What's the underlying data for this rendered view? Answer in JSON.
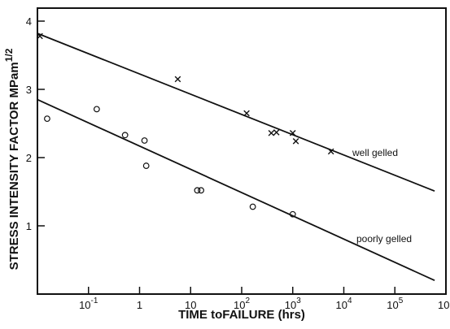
{
  "chart_data": {
    "type": "scatter",
    "xscale": "log",
    "xlim": [
      0.01,
      1000000
    ],
    "ylim": [
      0,
      4
    ],
    "grid": false,
    "xlabel": "TIME toFAILURE (hrs)",
    "ylabel": "STRESS INTENSITY FACTOR MPam",
    "ylabel_sup": "1/2",
    "yticks": [
      {
        "value": 1,
        "label": "1"
      },
      {
        "value": 2,
        "label": "2"
      },
      {
        "value": 3,
        "label": "3"
      },
      {
        "value": 4,
        "label": "4"
      }
    ],
    "xticks": [
      {
        "value": 0.1,
        "base": "10",
        "exp": "-1"
      },
      {
        "value": 1,
        "base": "1",
        "exp": ""
      },
      {
        "value": 10,
        "base": "10",
        "exp": ""
      },
      {
        "value": 100,
        "base": "10",
        "exp": "2"
      },
      {
        "value": 1000,
        "base": "10",
        "exp": "3"
      },
      {
        "value": 10000,
        "base": "10",
        "exp": "4"
      },
      {
        "value": 100000,
        "base": "10",
        "exp": "5"
      },
      {
        "value": 1000000,
        "base": "10",
        "exp": "6"
      }
    ],
    "series": [
      {
        "name": "well gelled",
        "marker": "x",
        "points": [
          {
            "x": 0.01,
            "y": 3.78
          },
          {
            "x": 5.6,
            "y": 3.15
          },
          {
            "x": 125,
            "y": 2.65
          },
          {
            "x": 380,
            "y": 2.36
          },
          {
            "x": 480,
            "y": 2.37
          },
          {
            "x": 1000,
            "y": 2.36
          },
          {
            "x": 1150,
            "y": 2.24
          },
          {
            "x": 5600,
            "y": 2.09
          }
        ],
        "fit": [
          {
            "x": 0.01,
            "y": 3.82
          },
          {
            "x": 600000,
            "y": 1.51
          }
        ]
      },
      {
        "name": "poorly gelled",
        "marker": "o",
        "points": [
          {
            "x": 0.0155,
            "y": 2.57
          },
          {
            "x": 0.145,
            "y": 2.71
          },
          {
            "x": 0.52,
            "y": 2.33
          },
          {
            "x": 1.25,
            "y": 2.25
          },
          {
            "x": 1.35,
            "y": 1.88
          },
          {
            "x": 13.5,
            "y": 1.52
          },
          {
            "x": 16,
            "y": 1.52
          },
          {
            "x": 165,
            "y": 1.28
          },
          {
            "x": 1000,
            "y": 1.17
          }
        ],
        "fit": [
          {
            "x": 0.01,
            "y": 2.85
          },
          {
            "x": 600000,
            "y": 0.2
          }
        ]
      }
    ]
  }
}
